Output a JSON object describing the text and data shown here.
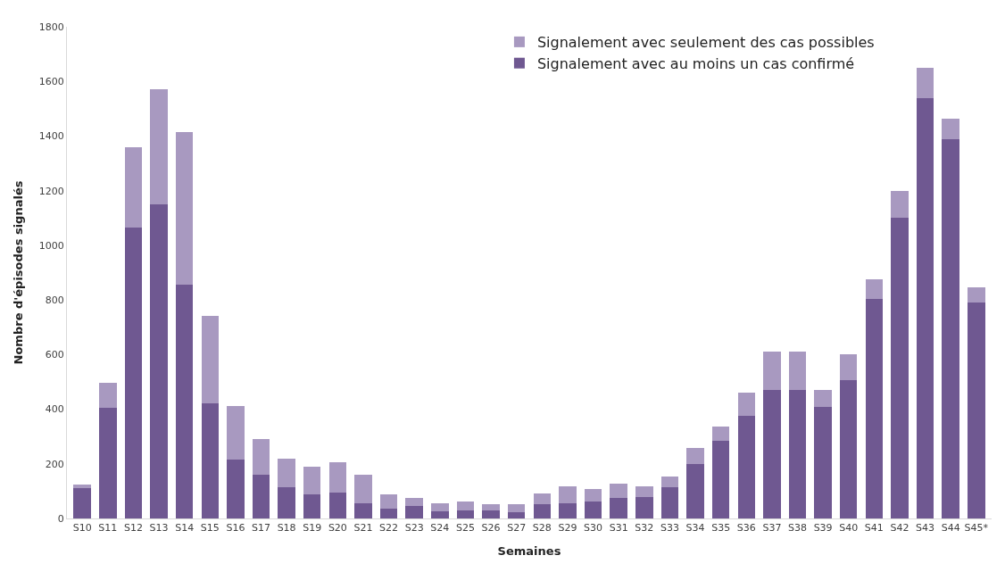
{
  "chart_data": {
    "type": "bar",
    "stacked": true,
    "xlabel": "Semaines",
    "ylabel": "Nombre d'épisodes signalés",
    "categories": [
      "S10",
      "S11",
      "S12",
      "S13",
      "S14",
      "S15",
      "S16",
      "S17",
      "S18",
      "S19",
      "S20",
      "S21",
      "S22",
      "S23",
      "S24",
      "S25",
      "S26",
      "S27",
      "S28",
      "S29",
      "S30",
      "S31",
      "S32",
      "S33",
      "S34",
      "S35",
      "S36",
      "S37",
      "S38",
      "S39",
      "S40",
      "S41",
      "S42",
      "S43",
      "S44",
      "S45*"
    ],
    "series": [
      {
        "name": "Signalement avec au moins un cas confirmé",
        "color": "#6f5891",
        "values": [
          110,
          405,
          1065,
          1150,
          855,
          420,
          215,
          160,
          115,
          88,
          95,
          57,
          35,
          45,
          27,
          30,
          30,
          22,
          52,
          55,
          62,
          75,
          78,
          115,
          200,
          285,
          375,
          470,
          472,
          408,
          505,
          805,
          1100,
          1540,
          1390,
          792
        ]
      },
      {
        "name": "Signalement avec seulement des cas possibles",
        "color": "#a899c0",
        "values": [
          15,
          90,
          295,
          420,
          560,
          320,
          195,
          130,
          105,
          102,
          112,
          103,
          53,
          30,
          28,
          32,
          22,
          30,
          41,
          63,
          46,
          53,
          40,
          40,
          58,
          50,
          87,
          142,
          140,
          64,
          97,
          70,
          100,
          110,
          75,
          53
        ]
      }
    ],
    "ylim": [
      0,
      1800
    ],
    "yticks": [
      0,
      200,
      400,
      600,
      800,
      1000,
      1200,
      1400,
      1600,
      1800
    ],
    "legend": "top right"
  }
}
